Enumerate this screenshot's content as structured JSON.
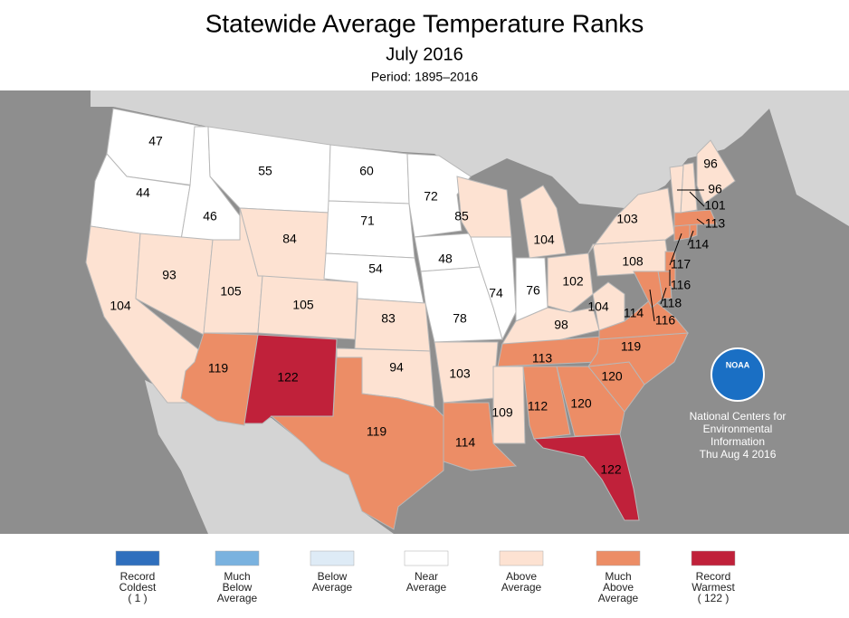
{
  "header": {
    "title": "Statewide Average Temperature Ranks",
    "subtitle": "July 2016",
    "period": "Period: 1895–2016"
  },
  "map": {
    "regions": [
      {
        "rank": 47,
        "color": "#ffffff"
      },
      {
        "rank": 44,
        "color": "#ffffff"
      },
      {
        "rank": 104,
        "color": "#fde2d2"
      },
      {
        "rank": 46,
        "color": "#ffffff"
      },
      {
        "rank": 93,
        "color": "#fde2d2"
      },
      {
        "rank": 55,
        "color": "#ffffff"
      },
      {
        "rank": 84,
        "color": "#fde2d2"
      },
      {
        "rank": 105,
        "color": "#fde2d2"
      },
      {
        "rank": 105,
        "color": "#fde2d2"
      },
      {
        "rank": 119,
        "color": "#ec8d66"
      },
      {
        "rank": 122,
        "color": "#c0213a"
      },
      {
        "rank": 60,
        "color": "#ffffff"
      },
      {
        "rank": 71,
        "color": "#ffffff"
      },
      {
        "rank": 54,
        "color": "#ffffff"
      },
      {
        "rank": 83,
        "color": "#fde2d2"
      },
      {
        "rank": 94,
        "color": "#fde2d2"
      },
      {
        "rank": 119,
        "color": "#ec8d66"
      },
      {
        "rank": 72,
        "color": "#ffffff"
      },
      {
        "rank": 48,
        "color": "#ffffff"
      },
      {
        "rank": 78,
        "color": "#ffffff"
      },
      {
        "rank": 103,
        "color": "#fde2d2"
      },
      {
        "rank": 114,
        "color": "#ec8d66"
      },
      {
        "rank": 85,
        "color": "#fde2d2"
      },
      {
        "rank": 74,
        "color": "#ffffff"
      },
      {
        "rank": 104,
        "color": "#fde2d2"
      },
      {
        "rank": 76,
        "color": "#ffffff"
      },
      {
        "rank": 102,
        "color": "#fde2d2"
      },
      {
        "rank": 98,
        "color": "#fde2d2"
      },
      {
        "rank": 113,
        "color": "#ec8d66"
      },
      {
        "rank": 109,
        "color": "#fde2d2"
      },
      {
        "rank": 112,
        "color": "#ec8d66"
      },
      {
        "rank": 120,
        "color": "#ec8d66"
      },
      {
        "rank": 122,
        "color": "#c0213a"
      },
      {
        "rank": 120,
        "color": "#ec8d66"
      },
      {
        "rank": 119,
        "color": "#ec8d66"
      },
      {
        "rank": 114,
        "color": "#ec8d66"
      },
      {
        "rank": 104,
        "color": "#fde2d2"
      },
      {
        "rank": 108,
        "color": "#fde2d2"
      },
      {
        "rank": 103,
        "color": "#fde2d2"
      },
      {
        "rank": 116,
        "color": "#ec8d66"
      },
      {
        "rank": 118,
        "color": "#ec8d66"
      },
      {
        "rank": 116,
        "color": "#ec8d66"
      },
      {
        "rank": 117,
        "color": "#ec8d66"
      },
      {
        "rank": 114,
        "color": "#ec8d66"
      },
      {
        "rank": 113,
        "color": "#ec8d66"
      },
      {
        "rank": 96,
        "color": "#fde2d2"
      },
      {
        "rank": 101,
        "color": "#fde2d2"
      },
      {
        "rank": 96,
        "color": "#fde2d2"
      }
    ]
  },
  "legend": [
    {
      "lines": [
        "Record",
        "Coldest",
        "( 1 )"
      ],
      "color": "#2f6fbd"
    },
    {
      "lines": [
        "Much",
        "Below",
        "Average"
      ],
      "color": "#7ab2df"
    },
    {
      "lines": [
        "Below",
        "Average"
      ],
      "color": "#deebf6"
    },
    {
      "lines": [
        "Near",
        "Average"
      ],
      "color": "#ffffff"
    },
    {
      "lines": [
        "Above",
        "Average"
      ],
      "color": "#fde2d2"
    },
    {
      "lines": [
        "Much",
        "Above",
        "Average"
      ],
      "color": "#ec8d66"
    },
    {
      "lines": [
        "Record",
        "Warmest",
        "( 122 )"
      ],
      "color": "#c0213a"
    }
  ],
  "logo": "NOAA",
  "credit": [
    "National Centers for",
    "Environmental",
    "Information",
    "Thu Aug  4 2016"
  ]
}
